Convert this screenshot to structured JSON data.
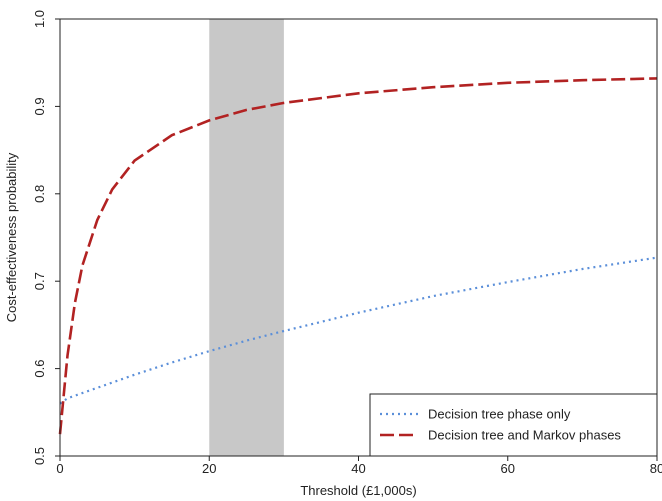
{
  "chart_data": {
    "type": "line",
    "xlabel": "Threshold (£1,000s)",
    "ylabel": "Cost-effectiveness probability",
    "xlim": [
      0,
      80
    ],
    "ylim": [
      0.5,
      1.0
    ],
    "x_ticks": [
      0,
      20,
      40,
      60,
      80
    ],
    "y_ticks": [
      0.5,
      0.6,
      0.7,
      0.8,
      0.9,
      1.0
    ],
    "x_tick_labels": [
      "0",
      "20",
      "40",
      "60",
      "80"
    ],
    "y_tick_labels": [
      "0.5",
      "0.6",
      "0.7",
      "0.8",
      "0.9",
      "1.0"
    ],
    "shaded_region": {
      "x": [
        20,
        30
      ],
      "color": "#c8c8c8"
    },
    "grid": false,
    "legend_position": "bottom-right",
    "series": [
      {
        "name": "Decision tree phase only",
        "style": "dotted",
        "color": "#5b8fd9",
        "x": [
          0,
          1,
          2,
          5,
          10,
          15,
          20,
          25,
          30,
          40,
          50,
          60,
          70,
          80
        ],
        "y": [
          0.56,
          0.566,
          0.569,
          0.578,
          0.593,
          0.607,
          0.62,
          0.632,
          0.643,
          0.664,
          0.683,
          0.699,
          0.714,
          0.727
        ]
      },
      {
        "name": "Decision tree and Markov phases",
        "style": "dashed",
        "color": "#b22222",
        "x": [
          0,
          1,
          2,
          3,
          5,
          7,
          10,
          15,
          20,
          25,
          30,
          40,
          50,
          60,
          70,
          80
        ],
        "y": [
          0.525,
          0.615,
          0.675,
          0.718,
          0.77,
          0.805,
          0.838,
          0.867,
          0.884,
          0.896,
          0.904,
          0.915,
          0.922,
          0.927,
          0.93,
          0.932
        ]
      }
    ]
  }
}
